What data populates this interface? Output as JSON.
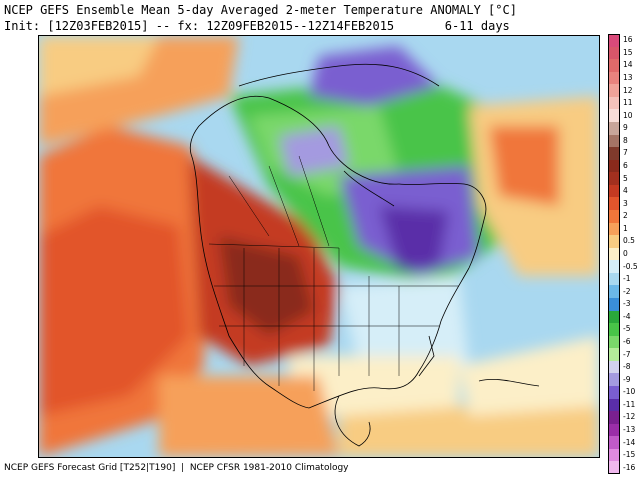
{
  "header": {
    "title": "NCEP GEFS Ensemble Mean 5-day Averaged 2-meter Temperature ANOMALY [°C]",
    "subtitle_init": "Init: [12Z03FEB2015]",
    "subtitle_sep": "--",
    "subtitle_fx": "fx: 12Z09FEB2015--12Z14FEB2015",
    "subtitle_range": "6-11 days"
  },
  "footer": {
    "text": "NCEP GEFS Forecast Grid [T252|T190]  |  NCEP CFSR 1981-2010 Climatology"
  },
  "legend": {
    "entries": [
      {
        "label": "16",
        "color": "#d94a7a"
      },
      {
        "label": "15",
        "color": "#d9566a"
      },
      {
        "label": "14",
        "color": "#e06a6a"
      },
      {
        "label": "13",
        "color": "#e8837e"
      },
      {
        "label": "12",
        "color": "#f0a39a"
      },
      {
        "label": "11",
        "color": "#f5c2bb"
      },
      {
        "label": "10",
        "color": "#f9ddd8"
      },
      {
        "label": "9",
        "color": "#c9a59a"
      },
      {
        "label": "8",
        "color": "#a57466"
      },
      {
        "label": "7",
        "color": "#7f3a2c"
      },
      {
        "label": "6",
        "color": "#8a2a1c"
      },
      {
        "label": "5",
        "color": "#a3301f"
      },
      {
        "label": "4",
        "color": "#c43a22"
      },
      {
        "label": "3",
        "color": "#e2552c"
      },
      {
        "label": "2",
        "color": "#f0763a"
      },
      {
        "label": "1",
        "color": "#f6a05a"
      },
      {
        "label": "0.5",
        "color": "#f8cc82"
      },
      {
        "label": "0",
        "color": "#fcefc8"
      },
      {
        "label": "-0.5",
        "color": "#d6eef8"
      },
      {
        "label": "-1",
        "color": "#a9d8f0"
      },
      {
        "label": "-2",
        "color": "#6cb8e8"
      },
      {
        "label": "-3",
        "color": "#3a8ed8"
      },
      {
        "label": "-4",
        "color": "#2aa83a"
      },
      {
        "label": "-5",
        "color": "#48c448"
      },
      {
        "label": "-6",
        "color": "#7ad86a"
      },
      {
        "label": "-7",
        "color": "#b4ec9a"
      },
      {
        "label": "-8",
        "color": "#d2d2ee"
      },
      {
        "label": "-9",
        "color": "#a49ae0"
      },
      {
        "label": "-10",
        "color": "#7a5ed0"
      },
      {
        "label": "-11",
        "color": "#5a2ea8"
      },
      {
        "label": "-12",
        "color": "#7a2090"
      },
      {
        "label": "-13",
        "color": "#9a2ea8"
      },
      {
        "label": "-14",
        "color": "#c05ac8"
      },
      {
        "label": "-15",
        "color": "#e08ae0"
      },
      {
        "label": "-16",
        "color": "#f0b8ee"
      }
    ]
  }
}
